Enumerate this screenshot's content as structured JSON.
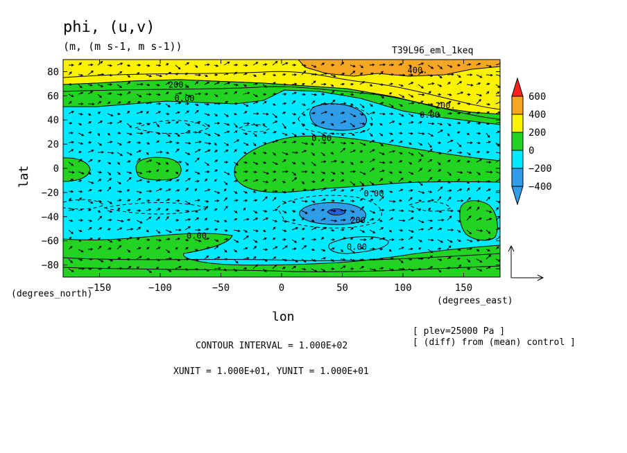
{
  "header": {
    "title": "phi, (u,v)",
    "units": "(m, (m s-1, m s-1))",
    "run_name": "T39L96_eml_1keq"
  },
  "footer": {
    "contour_interval": "CONTOUR INTERVAL = 1.000E+02",
    "vector_units": "XUNIT = 1.000E+01, YUNIT = 1.000E+01",
    "plev": "[ plev=25000 Pa ]",
    "diff_note": "[ (diff) from (mean) control ]"
  },
  "colors": {
    "orange": "#f5a623",
    "yellow": "#fbf200",
    "green": "#22d322",
    "cyan": "#00eaff",
    "blue": "#2f9de8",
    "deepblue": "#1f63d6",
    "red": "#ff1f1f"
  },
  "chart_data": {
    "type": "heatmap",
    "xlabel": "lon",
    "ylabel": "lat",
    "x_unit_label": "(degrees_east)",
    "y_unit_label": "(degrees_north)",
    "xlim": [
      -180,
      180
    ],
    "ylim": [
      -90,
      90
    ],
    "x_ticks": [
      -150,
      -100,
      -50,
      0,
      50,
      100,
      150
    ],
    "y_ticks": [
      -80,
      -60,
      -40,
      -20,
      0,
      20,
      40,
      60,
      80
    ],
    "colorbar": {
      "levels": [
        600,
        400,
        200,
        0,
        -200,
        -400
      ],
      "labels": [
        "600",
        "400",
        "200",
        "0",
        "−200",
        "−400"
      ]
    },
    "contour_labels": [
      {
        "text": "400.",
        "lon": 112,
        "lat": 81
      },
      {
        "text": "200.",
        "lon": -85,
        "lat": 69
      },
      {
        "text": "0.00",
        "lon": -80,
        "lat": 58
      },
      {
        "text": "200.",
        "lon": 135,
        "lat": 52
      },
      {
        "text": "0.00",
        "lon": 122,
        "lat": 44
      },
      {
        "text": "0.00",
        "lon": 33,
        "lat": 25
      },
      {
        "text": "0.00",
        "lon": 76,
        "lat": -21
      },
      {
        "text": "200.",
        "lon": 65,
        "lat": -43
      },
      {
        "text": "0.00",
        "lon": -70,
        "lat": -56
      },
      {
        "text": "0.00",
        "lon": 62,
        "lat": -65
      }
    ]
  }
}
